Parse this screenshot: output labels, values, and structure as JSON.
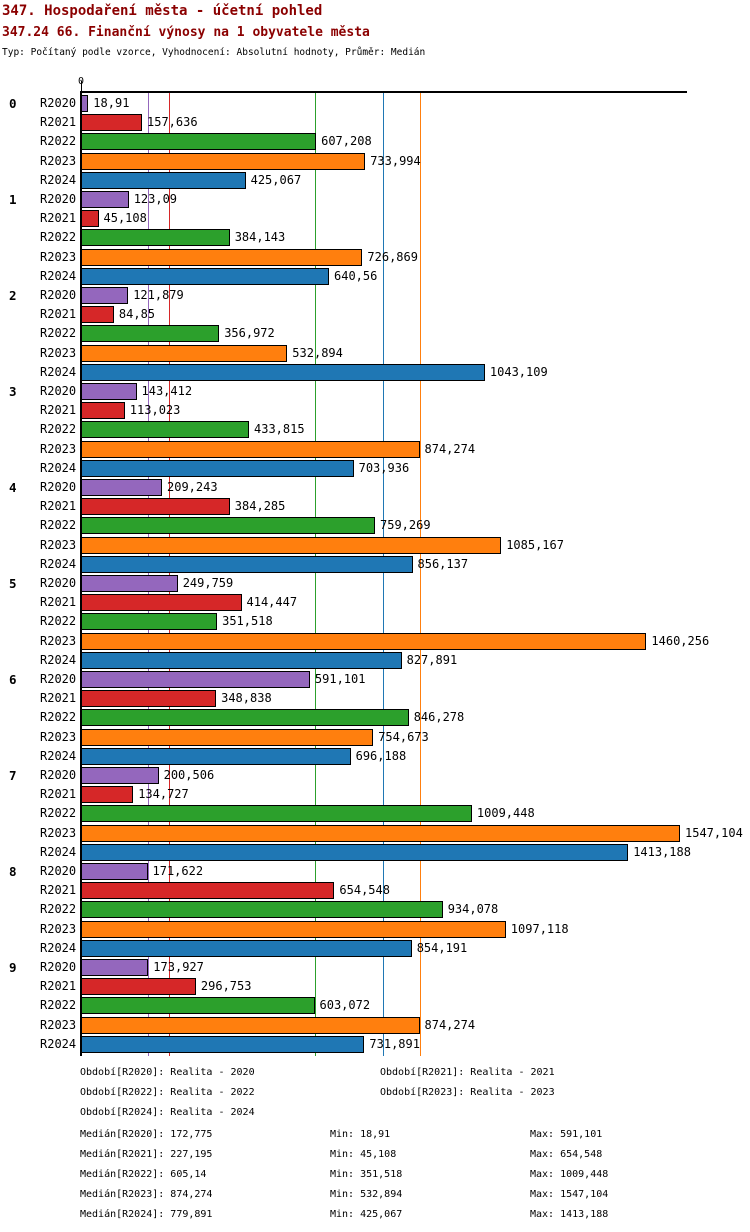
{
  "header": {
    "title1": "347. Hospodaření města - účetní pohled",
    "title2": "347.24 66. Finanční výnosy na 1 obyvatele města",
    "meta": "Typ: Počítaný podle vzorce, Vyhodnocení: Absolutní hodnoty, Průměr: Medián"
  },
  "chart_data": {
    "type": "bar",
    "orientation": "horizontal",
    "title": "347.24 66. Finanční výnosy na 1 obyvatele města",
    "xlabel": "",
    "ylabel": "",
    "xlim": [
      0,
      1565
    ],
    "x_zero_label": "0",
    "grid": "vertical-median-lines",
    "categories": [
      "0",
      "1",
      "2",
      "3",
      "4",
      "5",
      "6",
      "7",
      "8",
      "9"
    ],
    "series": [
      {
        "name": "R2020",
        "color": "#9467bd",
        "median": 172.775,
        "values": [
          18.91,
          123.09,
          121.879,
          143.412,
          209.243,
          249.759,
          591.101,
          200.506,
          171.622,
          173.927
        ],
        "labels": [
          "18,91",
          "123,09",
          "121,879",
          "143,412",
          "209,243",
          "249,759",
          "591,101",
          "200,506",
          "171,622",
          "173,927"
        ]
      },
      {
        "name": "R2021",
        "color": "#d62728",
        "median": 227.195,
        "values": [
          157.636,
          45.108,
          84.85,
          113.023,
          384.285,
          414.447,
          348.838,
          134.727,
          654.548,
          296.753
        ],
        "labels": [
          "157,636",
          "45,108",
          "84,85",
          "113,023",
          "384,285",
          "414,447",
          "348,838",
          "134,727",
          "654,548",
          "296,753"
        ]
      },
      {
        "name": "R2022",
        "color": "#2ca02c",
        "median": 605.14,
        "values": [
          607.208,
          384.143,
          356.972,
          433.815,
          759.269,
          351.518,
          846.278,
          1009.448,
          934.078,
          603.072
        ],
        "labels": [
          "607,208",
          "384,143",
          "356,972",
          "433,815",
          "759,269",
          "351,518",
          "846,278",
          "1009,448",
          "934,078",
          "603,072"
        ]
      },
      {
        "name": "R2023",
        "color": "#ff7f0e",
        "median": 874.274,
        "values": [
          733.994,
          726.869,
          532.894,
          874.274,
          1085.167,
          1460.256,
          754.673,
          1547.104,
          1097.118,
          874.274
        ],
        "labels": [
          "733,994",
          "726,869",
          "532,894",
          "874,274",
          "1085,167",
          "1460,256",
          "754,673",
          "1547,104",
          "1097,118",
          "874,274"
        ]
      },
      {
        "name": "R2024",
        "color": "#1f77b4",
        "median": 779.891,
        "values": [
          425.067,
          640.56,
          1043.109,
          703.936,
          856.137,
          827.891,
          696.188,
          1413.188,
          854.191,
          731.891
        ],
        "labels": [
          "425,067",
          "640,56",
          "1043,109",
          "703,936",
          "856,137",
          "827,891",
          "696,188",
          "1413,188",
          "854,191",
          "731,891"
        ]
      }
    ]
  },
  "legend": {
    "periods": [
      [
        "Období[R2020]: Realita - 2020",
        "Období[R2021]: Realita - 2021"
      ],
      [
        "Období[R2022]: Realita - 2022",
        "Období[R2023]: Realita - 2023"
      ],
      [
        "Období[R2024]: Realita - 2024"
      ]
    ]
  },
  "stats": {
    "rows": [
      [
        "Medián[R2020]: 172,775",
        "Min: 18,91",
        "Max: 591,101"
      ],
      [
        "Medián[R2021]: 227,195",
        "Min: 45,108",
        "Max: 654,548"
      ],
      [
        "Medián[R2022]: 605,14",
        "Min: 351,518",
        "Max: 1009,448"
      ],
      [
        "Medián[R2023]: 874,274",
        "Min: 532,894",
        "Max: 1547,104"
      ],
      [
        "Medián[R2024]: 779,891",
        "Min: 425,067",
        "Max: 1413,188"
      ]
    ]
  }
}
